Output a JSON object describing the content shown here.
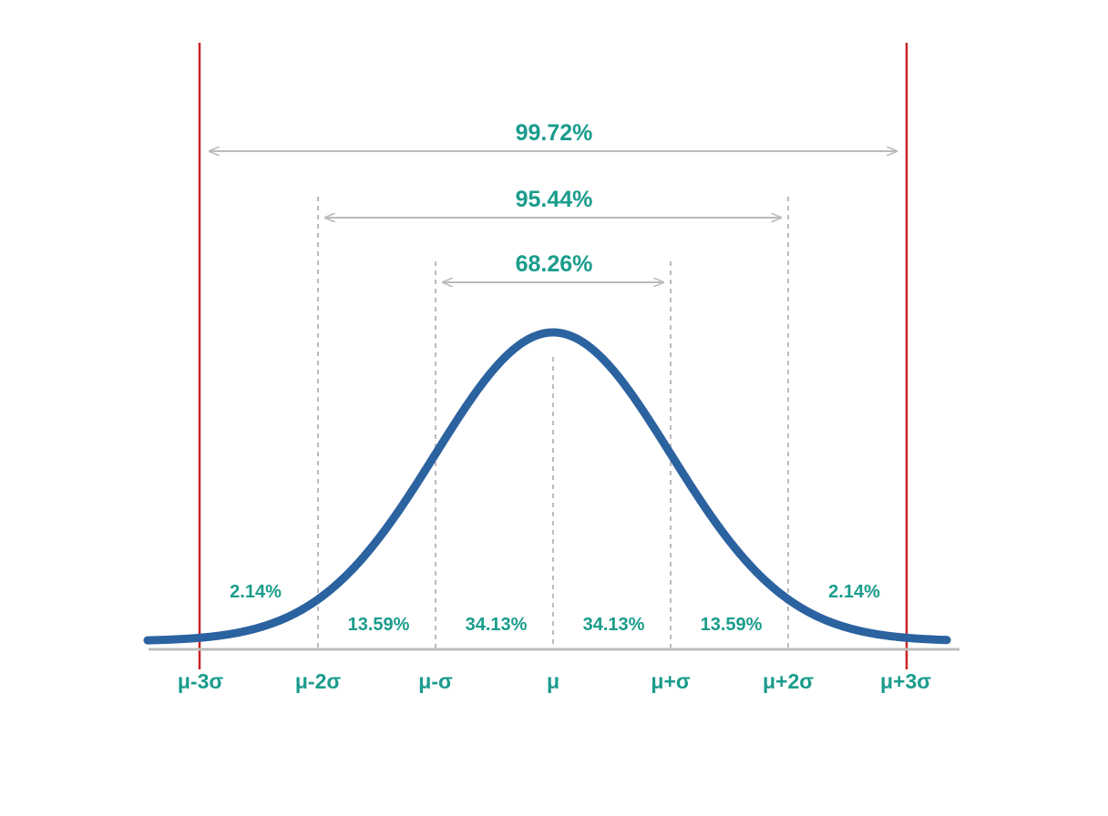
{
  "chart_data": {
    "type": "line",
    "title": "",
    "xlabel": "",
    "ylabel": "",
    "xlim": [
      -3.45,
      3.35
    ],
    "ylim": [
      0,
      0.4
    ],
    "grid": false,
    "curve": {
      "distribution": "normal",
      "mean": 0,
      "sd": 1,
      "color": "#2b62a0"
    },
    "ticks": [
      {
        "x": -3,
        "label": "μ-3σ"
      },
      {
        "x": -2,
        "label": "μ-2σ"
      },
      {
        "x": -1,
        "label": "μ-σ"
      },
      {
        "x": 0,
        "label": "μ"
      },
      {
        "x": 1,
        "label": "μ+σ"
      },
      {
        "x": 2,
        "label": "μ+2σ"
      },
      {
        "x": 3,
        "label": "μ+3σ"
      }
    ],
    "region_labels": [
      {
        "from": -3,
        "to": -2,
        "label": "2.14%"
      },
      {
        "from": -2,
        "to": -1,
        "label": "13.59%"
      },
      {
        "from": -1,
        "to": 0,
        "label": "34.13%"
      },
      {
        "from": 0,
        "to": 1,
        "label": "34.13%"
      },
      {
        "from": 1,
        "to": 2,
        "label": "13.59%"
      },
      {
        "from": 2,
        "to": 3,
        "label": "2.14%"
      }
    ],
    "span_arrows": [
      {
        "from": -3,
        "to": 3,
        "label": "99.72%"
      },
      {
        "from": -2,
        "to": 2,
        "label": "95.44%"
      },
      {
        "from": -1,
        "to": 1,
        "label": "68.26%"
      }
    ],
    "colors": {
      "text": "#1a9c8c",
      "limit_lines": "#cc2222",
      "guides": "#bbbbbb",
      "axis": "#bdbdbd"
    }
  }
}
